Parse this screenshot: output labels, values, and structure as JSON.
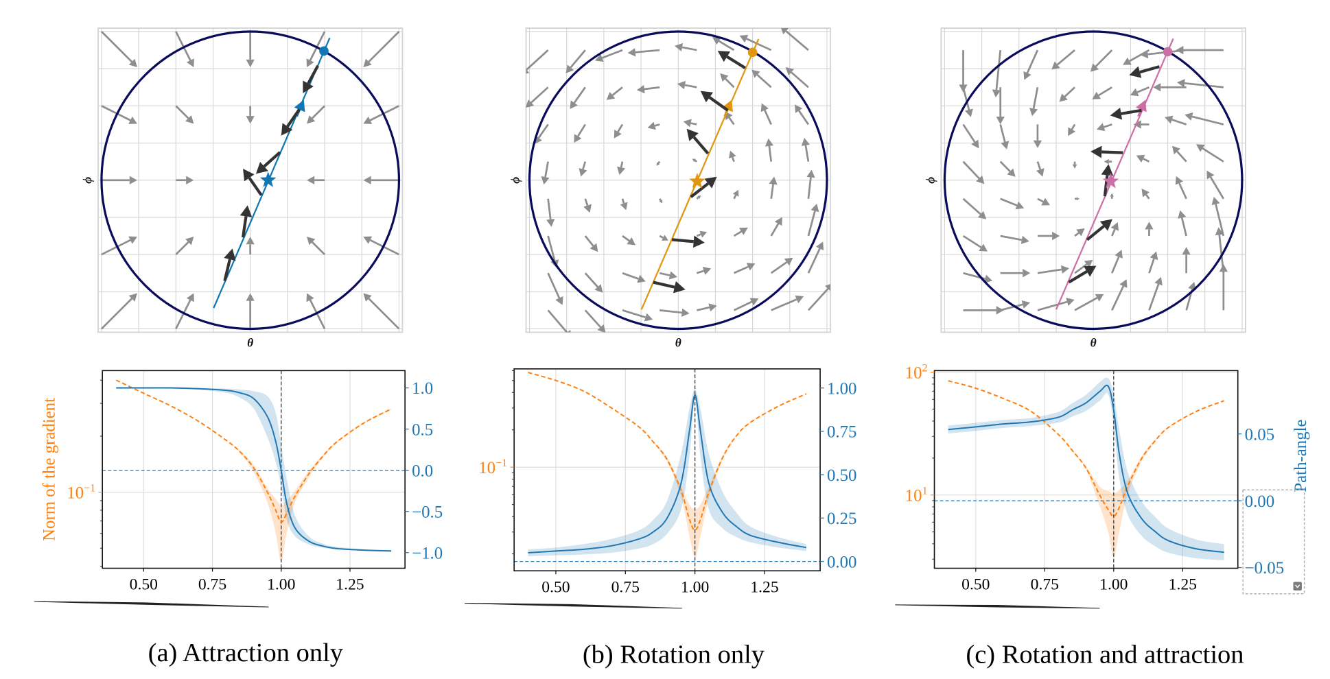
{
  "colors": {
    "orange": "#ff7f0e",
    "blue": "#1f77b4",
    "circle": "#0b0b5c",
    "field_arrow": "#8e8e8e",
    "trajectory_arrow": "#333333",
    "grid": "#d4d4d4"
  },
  "captions": [
    "(a) Attraction only",
    "(b) Rotation only",
    "(c) Rotation and attraction"
  ],
  "chart_data": [
    {
      "type": "quiver",
      "panel": "a",
      "field": "attraction",
      "xlabel": "θ",
      "ylabel": "ϕ",
      "grid": true,
      "trajectory_color": "#0e77b4",
      "trajectory_line": [
        [
          -0.246,
          -0.86
        ],
        [
          0.534,
          0.957
        ]
      ],
      "start_point": [
        0.495,
        0.869
      ],
      "optimum_star": [
        0.12,
        0.0
      ],
      "direction_marker": [
        0.36,
        0.54
      ],
      "trajectory_arrows": [
        [
          [
            0.454,
            0.769
          ],
          [
            0.354,
            0.585
          ]
        ],
        [
          [
            0.33,
            0.477
          ],
          [
            0.208,
            0.3
          ]
        ],
        [
          [
            0.2,
            0.188
          ],
          [
            0.038,
            0.043
          ]
        ],
        [
          [
            0.074,
            -0.1
          ],
          [
            -0.049,
            0.077
          ]
        ],
        [
          [
            -0.049,
            -0.385
          ],
          [
            -0.018,
            -0.169
          ]
        ],
        [
          [
            -0.172,
            -0.677
          ],
          [
            -0.12,
            -0.46
          ]
        ]
      ]
    },
    {
      "type": "quiver",
      "panel": "b",
      "field": "rotation",
      "xlabel": "θ",
      "ylabel": "ϕ",
      "grid": true,
      "trajectory_color": "#e0960f",
      "trajectory_line": [
        [
          -0.247,
          -0.87
        ],
        [
          0.54,
          0.95
        ]
      ],
      "start_point": [
        0.5,
        0.86
      ],
      "optimum_star": [
        0.128,
        -0.008
      ],
      "direction_marker": [
        0.36,
        0.54
      ],
      "trajectory_arrows": [
        [
          [
            0.45,
            0.755
          ],
          [
            0.265,
            0.87
          ]
        ],
        [
          [
            0.333,
            0.47
          ],
          [
            0.15,
            0.6
          ]
        ],
        [
          [
            0.2,
            0.18
          ],
          [
            0.057,
            0.346
          ]
        ],
        [
          [
            0.085,
            -0.113
          ],
          [
            0.26,
            0.023
          ]
        ],
        [
          [
            -0.042,
            -0.4
          ],
          [
            0.178,
            -0.42
          ]
        ],
        [
          [
            -0.168,
            -0.687
          ],
          [
            0.048,
            -0.736
          ]
        ]
      ]
    },
    {
      "type": "quiver",
      "panel": "c",
      "field": "rotation and attraction",
      "xlabel": "θ",
      "ylabel": "ϕ",
      "grid": true,
      "trajectory_color": "#cc6fa6",
      "trajectory_line": [
        [
          -0.25,
          -0.87
        ],
        [
          0.537,
          0.952
        ]
      ],
      "start_point": [
        0.5,
        0.864
      ],
      "optimum_star": [
        0.117,
        -0.008
      ],
      "direction_marker": [
        0.35,
        0.54
      ],
      "trajectory_arrows": [
        [
          [
            0.444,
            0.764
          ],
          [
            0.241,
            0.707
          ]
        ],
        [
          [
            0.324,
            0.47
          ],
          [
            0.113,
            0.435
          ]
        ],
        [
          [
            0.198,
            0.185
          ],
          [
            -0.019,
            0.193
          ]
        ],
        [
          [
            0.077,
            -0.108
          ],
          [
            0.102,
            0.108
          ]
        ],
        [
          [
            -0.042,
            -0.401
          ],
          [
            0.128,
            -0.262
          ]
        ],
        [
          [
            -0.165,
            -0.687
          ],
          [
            0.02,
            -0.576
          ]
        ]
      ]
    },
    {
      "type": "line",
      "panel": "a",
      "xlim": [
        0.35,
        1.45
      ],
      "xticks": [
        0.5,
        0.75,
        1.0,
        1.25
      ],
      "xtick_labels": [
        "0.50",
        "0.75",
        "1.00",
        "1.25"
      ],
      "grid": true,
      "y_left": {
        "scale": "log",
        "lim": [
          0.039,
          0.45
        ],
        "ticks": [
          {
            "value": 0.1,
            "base": "10",
            "exp": "−1"
          }
        ],
        "label": "Norm of the gradient",
        "color": "#ff7f0e"
      },
      "y_right": {
        "scale": "linear",
        "lim": [
          -1.19,
          1.21
        ],
        "ticks": [
          1.0,
          0.5,
          0.0,
          -0.5,
          -1.0
        ],
        "tick_labels": [
          "1.0",
          "0.5",
          "0.0",
          "−0.5",
          "−1.0"
        ],
        "label": "",
        "color": "#1f77b4"
      },
      "x": [
        0.4,
        0.5,
        0.6,
        0.7,
        0.8,
        0.85,
        0.9,
        0.95,
        0.98,
        1.0,
        1.02,
        1.05,
        1.1,
        1.15,
        1.2,
        1.3,
        1.4
      ],
      "series": [
        {
          "axis": "left",
          "style": "dashed",
          "color": "#ff7f0e",
          "values": [
            0.4,
            0.34,
            0.29,
            0.24,
            0.19,
            0.165,
            0.135,
            0.1,
            0.08,
            0.069,
            0.077,
            0.095,
            0.125,
            0.155,
            0.185,
            0.235,
            0.28
          ],
          "lower": [
            0.4,
            0.34,
            0.29,
            0.24,
            0.19,
            0.163,
            0.128,
            0.088,
            0.06,
            0.042,
            0.06,
            0.088,
            0.12,
            0.152,
            0.183,
            0.233,
            0.278
          ],
          "upper": [
            0.4,
            0.34,
            0.29,
            0.24,
            0.19,
            0.167,
            0.14,
            0.105,
            0.092,
            0.085,
            0.09,
            0.102,
            0.13,
            0.158,
            0.187,
            0.237,
            0.282
          ]
        },
        {
          "axis": "right",
          "style": "solid",
          "color": "#1f77b4",
          "values": [
            1.0,
            1.0,
            1.0,
            0.99,
            0.97,
            0.94,
            0.87,
            0.65,
            0.35,
            0.0,
            -0.4,
            -0.7,
            -0.86,
            -0.92,
            -0.95,
            -0.97,
            -0.98
          ],
          "lower": [
            0.99,
            0.99,
            0.99,
            0.98,
            0.94,
            0.88,
            0.75,
            0.4,
            0.1,
            -0.2,
            -0.6,
            -0.8,
            -0.9,
            -0.94,
            -0.96,
            -0.98,
            -0.99
          ],
          "upper": [
            1.0,
            1.0,
            1.0,
            1.0,
            0.99,
            0.98,
            0.96,
            0.9,
            0.7,
            0.3,
            -0.1,
            -0.55,
            -0.8,
            -0.89,
            -0.93,
            -0.96,
            -0.97
          ]
        }
      ],
      "hlines": [
        {
          "axis": "right",
          "value": 0.0,
          "style": "dashed"
        }
      ],
      "vlines": [
        {
          "value": 1.0,
          "style": "dashed"
        }
      ]
    },
    {
      "type": "line",
      "panel": "b",
      "xlim": [
        0.35,
        1.45
      ],
      "xticks": [
        0.5,
        0.75,
        1.0,
        1.25
      ],
      "xtick_labels": [
        "0.50",
        "0.75",
        "1.00",
        "1.25"
      ],
      "grid": true,
      "y_left": {
        "scale": "log",
        "lim": [
          0.0146,
          0.62
        ],
        "ticks": [
          {
            "value": 0.1,
            "base": "10",
            "exp": "−1"
          }
        ],
        "label": "",
        "color": "#ff7f0e"
      },
      "y_right": {
        "scale": "linear",
        "lim": [
          -0.054,
          1.11
        ],
        "ticks": [
          1.0,
          0.75,
          0.5,
          0.25,
          0.0
        ],
        "tick_labels": [
          "1.00",
          "0.75",
          "0.50",
          "0.25",
          "0.00"
        ],
        "label": "",
        "color": "#1f77b4"
      },
      "x": [
        0.4,
        0.5,
        0.6,
        0.7,
        0.8,
        0.85,
        0.9,
        0.95,
        0.98,
        1.0,
        1.02,
        1.05,
        1.1,
        1.15,
        1.2,
        1.3,
        1.4
      ],
      "series": [
        {
          "axis": "left",
          "style": "dashed",
          "color": "#ff7f0e",
          "values": [
            0.58,
            0.5,
            0.41,
            0.3,
            0.21,
            0.16,
            0.115,
            0.065,
            0.038,
            0.031,
            0.038,
            0.063,
            0.12,
            0.18,
            0.23,
            0.31,
            0.39
          ],
          "lower": [
            0.58,
            0.5,
            0.41,
            0.3,
            0.21,
            0.158,
            0.11,
            0.058,
            0.028,
            0.0187,
            0.028,
            0.056,
            0.115,
            0.178,
            0.228,
            0.31,
            0.39
          ],
          "upper": [
            0.58,
            0.5,
            0.41,
            0.3,
            0.21,
            0.162,
            0.12,
            0.07,
            0.05,
            0.046,
            0.05,
            0.07,
            0.125,
            0.182,
            0.232,
            0.31,
            0.39
          ]
        },
        {
          "axis": "right",
          "style": "solid",
          "color": "#1f77b4",
          "values": [
            0.05,
            0.06,
            0.07,
            0.09,
            0.13,
            0.17,
            0.25,
            0.45,
            0.75,
            0.96,
            0.75,
            0.45,
            0.28,
            0.2,
            0.15,
            0.11,
            0.08
          ],
          "lower": [
            0.03,
            0.035,
            0.04,
            0.05,
            0.075,
            0.1,
            0.16,
            0.3,
            0.6,
            0.93,
            0.6,
            0.3,
            0.19,
            0.14,
            0.11,
            0.08,
            0.06
          ],
          "upper": [
            0.07,
            0.08,
            0.1,
            0.13,
            0.18,
            0.24,
            0.35,
            0.62,
            0.88,
            0.99,
            0.88,
            0.62,
            0.4,
            0.28,
            0.2,
            0.14,
            0.1
          ]
        }
      ],
      "hlines": [
        {
          "axis": "right",
          "value": 0.0,
          "style": "dashed"
        }
      ],
      "vlines": [
        {
          "value": 1.0,
          "style": "dashed"
        }
      ]
    },
    {
      "type": "line",
      "panel": "c",
      "xlim": [
        0.35,
        1.45
      ],
      "xticks": [
        0.5,
        0.75,
        1.0,
        1.25
      ],
      "xtick_labels": [
        "0.50",
        "0.75",
        "1.00",
        "1.25"
      ],
      "grid": true,
      "y_left": {
        "scale": "log",
        "lim": [
          2.53,
          103
        ],
        "ticks": [
          {
            "value": 100,
            "base": "10",
            "exp": "2"
          },
          {
            "value": 10,
            "base": "10",
            "exp": "1"
          }
        ],
        "label": "",
        "color": "#ff7f0e"
      },
      "y_right": {
        "scale": "linear",
        "lim": [
          -0.0505,
          0.0974
        ],
        "ticks": [
          0.05,
          0.0,
          -0.05
        ],
        "tick_labels": [
          "0.05",
          "0.00",
          "−0.05"
        ],
        "label": "Path-angle",
        "color": "#1f77b4"
      },
      "x": [
        0.4,
        0.5,
        0.6,
        0.7,
        0.8,
        0.85,
        0.9,
        0.95,
        0.98,
        1.0,
        1.02,
        1.05,
        1.1,
        1.15,
        1.2,
        1.3,
        1.4
      ],
      "series": [
        {
          "axis": "left",
          "style": "dashed",
          "color": "#ff7f0e",
          "values": [
            85,
            74,
            61,
            48,
            31,
            23,
            16.5,
            9.9,
            7.6,
            6.7,
            7.9,
            11.7,
            19.6,
            27.6,
            35.7,
            48,
            58.5
          ],
          "lower": [
            85,
            74,
            61,
            48,
            31,
            22.7,
            16,
            8,
            5,
            3.1,
            5,
            10,
            18.5,
            27,
            35.3,
            48,
            58.5
          ],
          "upper": [
            85,
            74,
            61,
            48,
            31,
            23.3,
            17,
            11.7,
            10.8,
            10.3,
            11,
            13,
            20.5,
            28.2,
            36.1,
            48,
            58.5
          ]
        },
        {
          "axis": "right",
          "style": "solid",
          "color": "#1f77b4",
          "values": [
            0.0533,
            0.0553,
            0.0575,
            0.059,
            0.0625,
            0.068,
            0.0733,
            0.0819,
            0.0857,
            0.068,
            0.0353,
            0.006,
            -0.013,
            -0.023,
            -0.03,
            -0.036,
            -0.0385
          ],
          "lower": [
            0.0503,
            0.0523,
            0.0545,
            0.056,
            0.0585,
            0.063,
            0.0673,
            0.0749,
            0.0797,
            0.056,
            0.0173,
            -0.01,
            -0.026,
            -0.034,
            -0.039,
            -0.043,
            -0.0445
          ],
          "upper": [
            0.0563,
            0.0583,
            0.0605,
            0.062,
            0.0665,
            0.073,
            0.0793,
            0.0889,
            0.0917,
            0.08,
            0.0533,
            0.022,
            0.0,
            -0.012,
            -0.021,
            -0.029,
            -0.0325
          ]
        }
      ],
      "hlines": [
        {
          "axis": "right",
          "value": 0.0,
          "style": "dashed"
        }
      ],
      "vlines": [
        {
          "value": 1.0,
          "style": "dashed"
        }
      ]
    }
  ]
}
